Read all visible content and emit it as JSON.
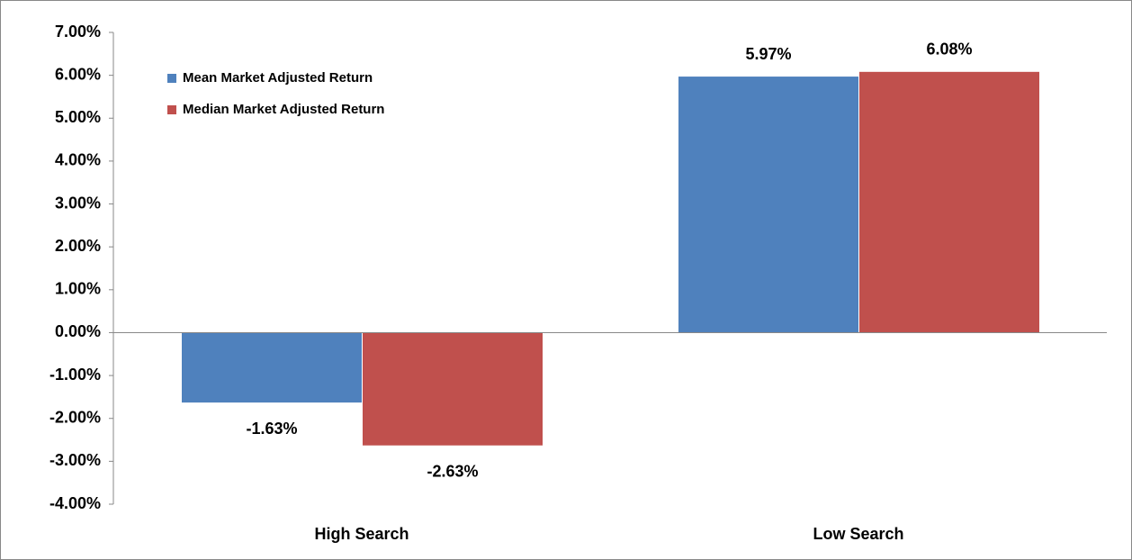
{
  "chart_data": {
    "type": "bar",
    "categories": [
      "High Search",
      "Low Search"
    ],
    "series": [
      {
        "name": "Mean Market Adjusted Return",
        "color": "#4f81bd",
        "values": [
          -1.63,
          5.97
        ],
        "value_labels": [
          "-1.63%",
          "5.97%"
        ]
      },
      {
        "name": "Median Market Adjusted Return",
        "color": "#c0504d",
        "values": [
          -2.63,
          6.08
        ],
        "value_labels": [
          "-2.63%",
          "6.08%"
        ]
      }
    ],
    "ylim": [
      -4,
      7
    ],
    "yticks": [
      {
        "value": -4,
        "label": "-4.00%"
      },
      {
        "value": -3,
        "label": "-3.00%"
      },
      {
        "value": -2,
        "label": "-2.00%"
      },
      {
        "value": -1,
        "label": "-1.00%"
      },
      {
        "value": 0,
        "label": "0.00%"
      },
      {
        "value": 1,
        "label": "1.00%"
      },
      {
        "value": 2,
        "label": "2.00%"
      },
      {
        "value": 3,
        "label": "3.00%"
      },
      {
        "value": 4,
        "label": "4.00%"
      },
      {
        "value": 5,
        "label": "5.00%"
      },
      {
        "value": 6,
        "label": "6.00%"
      },
      {
        "value": 7,
        "label": "7.00%"
      }
    ],
    "grid": false,
    "legend": "top-left"
  }
}
